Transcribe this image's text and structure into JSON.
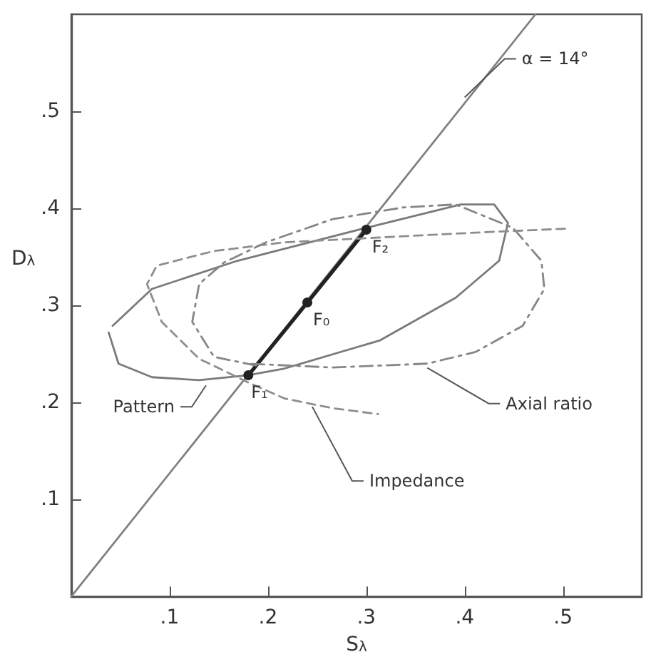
{
  "chart_data": {
    "type": "line",
    "xlabel": "S$_{λ}$",
    "ylabel": "D$_{λ}$",
    "xlim": [
      0,
      0.58
    ],
    "ylim": [
      0,
      0.6
    ],
    "xticks": [
      {
        "value": 0.1,
        "label": ".1"
      },
      {
        "value": 0.2,
        "label": ".2"
      },
      {
        "value": 0.3,
        "label": ".3"
      },
      {
        "value": 0.4,
        "label": ".4"
      },
      {
        "value": 0.5,
        "label": ".5"
      }
    ],
    "yticks": [
      {
        "value": 0.1,
        "label": ".1"
      },
      {
        "value": 0.2,
        "label": ".2"
      },
      {
        "value": 0.3,
        "label": ".3"
      },
      {
        "value": 0.4,
        "label": ".4"
      },
      {
        "value": 0.5,
        "label": ".5"
      }
    ],
    "grid": false,
    "marker": "none",
    "series": [
      {
        "color": "#808080",
        "line_style": "solid",
        "x": [
          0,
          0.472
        ],
        "values": [
          0,
          0.6
        ]
      },
      {
        "color": "#222222",
        "line_style": "solid",
        "marker": "circle",
        "x": [
          0.18,
          0.24,
          0.3
        ],
        "values": [
          0.228,
          0.303,
          0.378
        ]
      },
      {
        "color": "#7a7a7a",
        "line_style": "solid",
        "x": [
          0.038,
          0.048,
          0.082,
          0.13,
          0.179,
          0.217,
          0.314,
          0.391,
          0.435,
          0.444,
          0.43,
          0.396,
          0.3,
          0.169,
          0.082,
          0.042
        ],
        "values": [
          0.272,
          0.24,
          0.226,
          0.223,
          0.228,
          0.235,
          0.264,
          0.308,
          0.346,
          0.385,
          0.404,
          0.404,
          0.38,
          0.346,
          0.317,
          0.279
        ]
      },
      {
        "color": "#868686",
        "line_style": "dashdot",
        "x": [
          0.188,
          0.145,
          0.123,
          0.13,
          0.155,
          0.198,
          0.266,
          0.338,
          0.391,
          0.449,
          0.478,
          0.481,
          0.459,
          0.411,
          0.362,
          0.266,
          0.178
        ],
        "values": [
          0.238,
          0.247,
          0.283,
          0.322,
          0.344,
          0.365,
          0.389,
          0.401,
          0.404,
          0.38,
          0.346,
          0.317,
          0.279,
          0.252,
          0.24,
          0.236,
          0.24
        ]
      },
      {
        "color": "#8e8e8e",
        "line_style": "dashed",
        "x": [
          0.502,
          0.411,
          0.314,
          0.217,
          0.145,
          0.087,
          0.077,
          0.092,
          0.13,
          0.179,
          0.217,
          0.266,
          0.312
        ],
        "values": [
          0.379,
          0.375,
          0.37,
          0.365,
          0.356,
          0.341,
          0.322,
          0.283,
          0.245,
          0.221,
          0.204,
          0.194,
          0.188
        ]
      }
    ],
    "annotations": [
      {
        "text": "α = 14°",
        "x": 0.4,
        "y": 0.51
      },
      {
        "text": "F₂",
        "x": 0.3,
        "y": 0.378
      },
      {
        "text": "F₀",
        "x": 0.24,
        "y": 0.303
      },
      {
        "text": "F₁",
        "x": 0.18,
        "y": 0.228
      },
      {
        "text": "Pattern",
        "x": 0.137,
        "y": 0.222
      },
      {
        "text": "Axial ratio",
        "x": 0.362,
        "y": 0.24
      },
      {
        "text": "Impedance",
        "x": 0.245,
        "y": 0.2
      }
    ]
  }
}
